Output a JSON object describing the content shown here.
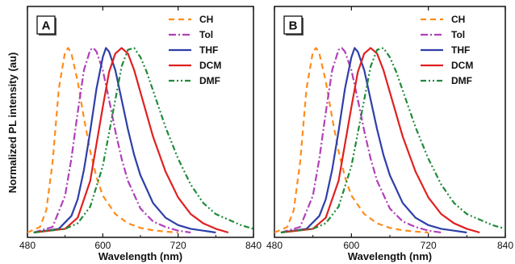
{
  "ylabel": "Normalized PL intensity (au)",
  "chart_data": [
    {
      "type": "line",
      "panel_label": "A",
      "xlabel": "Wavelength (nm)",
      "ylabel": "Normalized PL intensity (au)",
      "xlim": [
        480,
        840
      ],
      "ylim": [
        0,
        1.05
      ],
      "xticks": [
        480,
        600,
        720,
        840
      ],
      "grid": false,
      "legend_position": "top-right",
      "series": [
        {
          "name": "CH",
          "color": "#ff8c1a",
          "dash": "dashed",
          "x": [
            480,
            500,
            510,
            520,
            530,
            540,
            545,
            550,
            560,
            570,
            580,
            590,
            600,
            620,
            640,
            660,
            680,
            700,
            720
          ],
          "y": [
            0,
            0.03,
            0.12,
            0.38,
            0.78,
            0.98,
            1.0,
            0.97,
            0.82,
            0.62,
            0.44,
            0.3,
            0.2,
            0.1,
            0.05,
            0.025,
            0.012,
            0.005,
            0
          ]
        },
        {
          "name": "Tol",
          "color": "#b040b8",
          "dash": "dashdot",
          "x": [
            490,
            520,
            540,
            550,
            560,
            570,
            580,
            585,
            590,
            600,
            610,
            620,
            630,
            640,
            660,
            680,
            700,
            720,
            740
          ],
          "y": [
            0,
            0.03,
            0.2,
            0.4,
            0.65,
            0.88,
            0.99,
            1.0,
            0.98,
            0.88,
            0.72,
            0.55,
            0.4,
            0.28,
            0.13,
            0.06,
            0.03,
            0.01,
            0
          ]
        },
        {
          "name": "THF",
          "color": "#2e3fa8",
          "dash": "solid",
          "x": [
            490,
            530,
            550,
            560,
            570,
            580,
            590,
            600,
            605,
            610,
            620,
            630,
            640,
            650,
            660,
            680,
            700,
            720,
            740,
            760,
            780
          ],
          "y": [
            0,
            0.02,
            0.09,
            0.18,
            0.34,
            0.55,
            0.78,
            0.95,
            1.0,
            0.98,
            0.88,
            0.72,
            0.56,
            0.42,
            0.31,
            0.16,
            0.08,
            0.04,
            0.02,
            0.01,
            0
          ]
        },
        {
          "name": "DCM",
          "color": "#e02020",
          "dash": "solid",
          "x": [
            490,
            540,
            560,
            580,
            600,
            610,
            620,
            630,
            640,
            650,
            660,
            680,
            700,
            720,
            740,
            760,
            780,
            800
          ],
          "y": [
            0,
            0.02,
            0.08,
            0.28,
            0.68,
            0.87,
            0.97,
            1.0,
            0.97,
            0.88,
            0.76,
            0.52,
            0.33,
            0.19,
            0.1,
            0.05,
            0.02,
            0
          ]
        },
        {
          "name": "DMF",
          "color": "#208a3a",
          "dash": "dashdotdot",
          "x": [
            490,
            540,
            560,
            580,
            600,
            620,
            630,
            640,
            650,
            660,
            670,
            680,
            700,
            720,
            740,
            760,
            780,
            800,
            820,
            840
          ],
          "y": [
            0,
            0.02,
            0.05,
            0.14,
            0.36,
            0.72,
            0.9,
            0.99,
            1.0,
            0.95,
            0.87,
            0.77,
            0.57,
            0.4,
            0.26,
            0.16,
            0.1,
            0.07,
            0.04,
            0.02
          ]
        }
      ]
    },
    {
      "type": "line",
      "panel_label": "B",
      "xlabel": "Wavelength (nm)",
      "ylabel": "",
      "xlim": [
        480,
        840
      ],
      "ylim": [
        0,
        1.05
      ],
      "xticks": [
        480,
        600,
        720,
        840
      ],
      "grid": false,
      "legend_position": "top-right",
      "series": [
        {
          "name": "CH",
          "color": "#ff8c1a",
          "dash": "dashed",
          "x": [
            480,
            500,
            510,
            520,
            530,
            540,
            545,
            550,
            560,
            570,
            580,
            590,
            600,
            620,
            640,
            660,
            680,
            700,
            720
          ],
          "y": [
            0,
            0.03,
            0.12,
            0.38,
            0.78,
            0.98,
            1.0,
            0.97,
            0.82,
            0.62,
            0.44,
            0.3,
            0.2,
            0.1,
            0.05,
            0.025,
            0.012,
            0.005,
            0
          ]
        },
        {
          "name": "Tol",
          "color": "#b040b8",
          "dash": "dashdot",
          "x": [
            490,
            520,
            540,
            550,
            560,
            570,
            580,
            585,
            590,
            600,
            610,
            620,
            630,
            640,
            660,
            680,
            700,
            720,
            740
          ],
          "y": [
            0,
            0.03,
            0.2,
            0.4,
            0.65,
            0.88,
            0.99,
            1.0,
            0.98,
            0.88,
            0.72,
            0.55,
            0.4,
            0.28,
            0.13,
            0.06,
            0.03,
            0.01,
            0
          ]
        },
        {
          "name": "THF",
          "color": "#2e3fa8",
          "dash": "solid",
          "x": [
            490,
            530,
            550,
            560,
            570,
            580,
            590,
            600,
            605,
            610,
            620,
            630,
            640,
            650,
            660,
            680,
            700,
            720,
            740,
            760,
            780
          ],
          "y": [
            0,
            0.02,
            0.09,
            0.18,
            0.34,
            0.55,
            0.78,
            0.95,
            1.0,
            0.98,
            0.88,
            0.72,
            0.56,
            0.42,
            0.31,
            0.16,
            0.08,
            0.04,
            0.02,
            0.01,
            0
          ]
        },
        {
          "name": "DCM",
          "color": "#e02020",
          "dash": "solid",
          "x": [
            490,
            540,
            560,
            580,
            600,
            610,
            620,
            630,
            640,
            650,
            660,
            680,
            700,
            720,
            740,
            760,
            780,
            800
          ],
          "y": [
            0,
            0.02,
            0.08,
            0.28,
            0.68,
            0.87,
            0.97,
            1.0,
            0.97,
            0.88,
            0.76,
            0.52,
            0.33,
            0.19,
            0.1,
            0.05,
            0.02,
            0
          ]
        },
        {
          "name": "DMF",
          "color": "#208a3a",
          "dash": "dashdotdot",
          "x": [
            490,
            540,
            560,
            580,
            600,
            620,
            630,
            640,
            650,
            660,
            670,
            680,
            700,
            720,
            740,
            760,
            780,
            800,
            820,
            840
          ],
          "y": [
            0,
            0.02,
            0.05,
            0.14,
            0.36,
            0.72,
            0.9,
            0.99,
            1.0,
            0.95,
            0.87,
            0.77,
            0.57,
            0.4,
            0.26,
            0.16,
            0.1,
            0.07,
            0.04,
            0.02
          ]
        }
      ]
    }
  ]
}
